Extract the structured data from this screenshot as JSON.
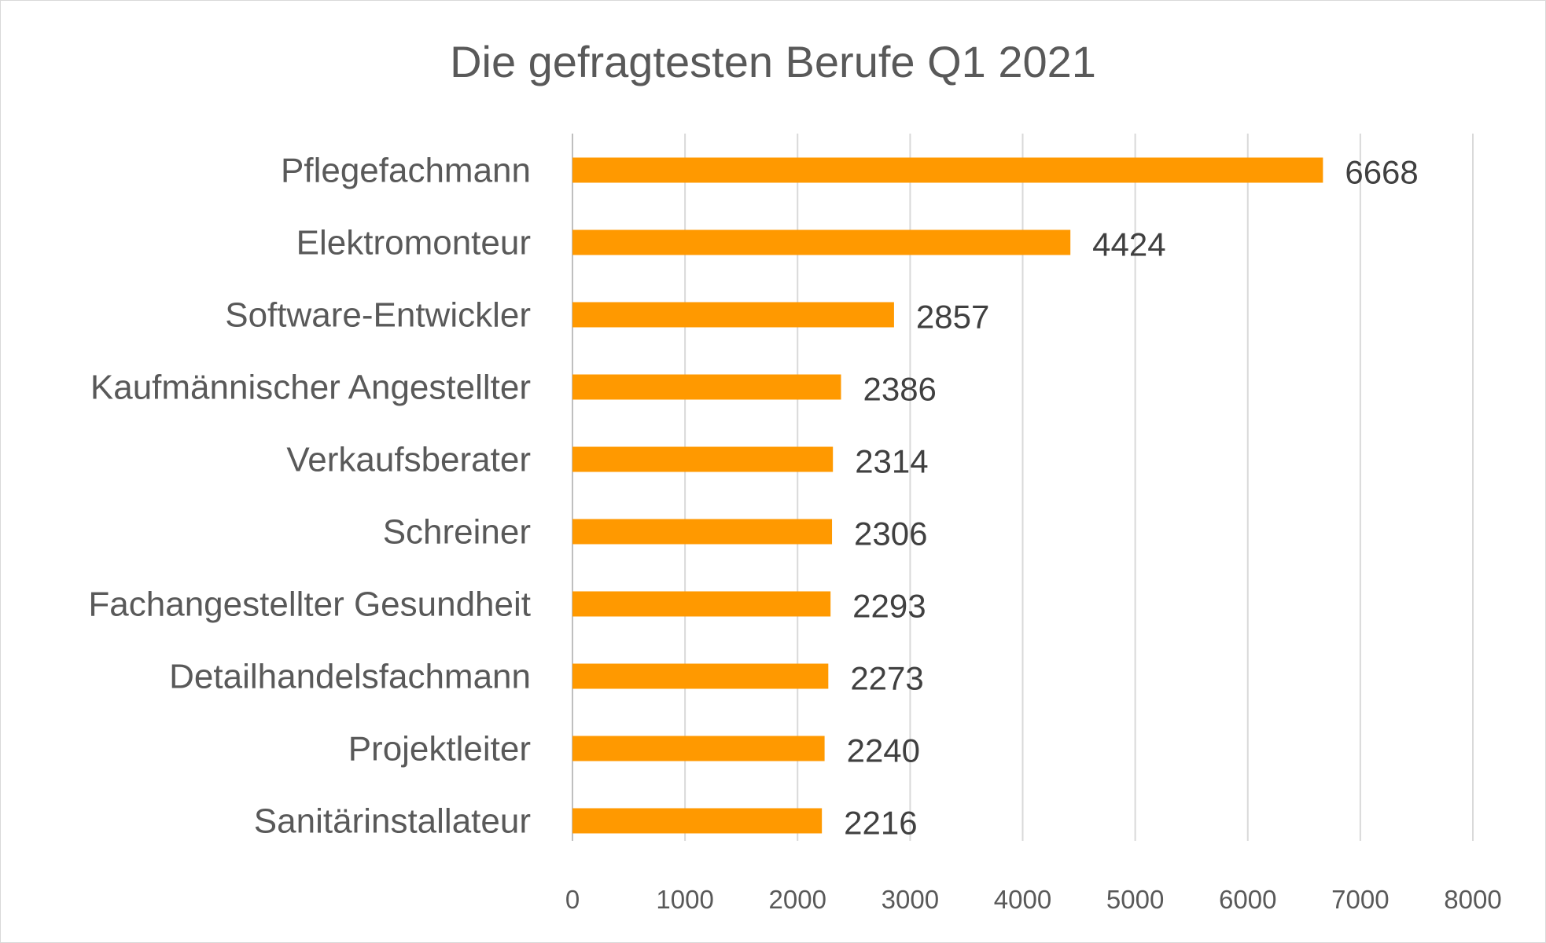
{
  "chart_data": {
    "type": "bar",
    "orientation": "horizontal",
    "title": "Die gefragtesten Berufe Q1 2021",
    "categories": [
      "Pflegefachmann",
      "Elektromonteur",
      "Software-Entwickler",
      "Kaufmännischer Angestellter",
      "Verkaufsberater",
      "Schreiner",
      "Fachangestellter Gesundheit",
      "Detailhandelsfachmann",
      "Projektleiter",
      "Sanitärinstallateur"
    ],
    "values": [
      6668,
      4424,
      2857,
      2386,
      2314,
      2306,
      2293,
      2273,
      2240,
      2216
    ],
    "xlim": [
      0,
      8000
    ],
    "xticks": [
      "0",
      "1000",
      "2000",
      "3000",
      "4000",
      "5000",
      "6000",
      "7000",
      "8000"
    ],
    "xlabel": "",
    "ylabel": "",
    "grid": "vertical",
    "legend": "none",
    "bar_color": "#ff9900",
    "grid_color": "#d9d9d9",
    "text_color": "#595959"
  }
}
